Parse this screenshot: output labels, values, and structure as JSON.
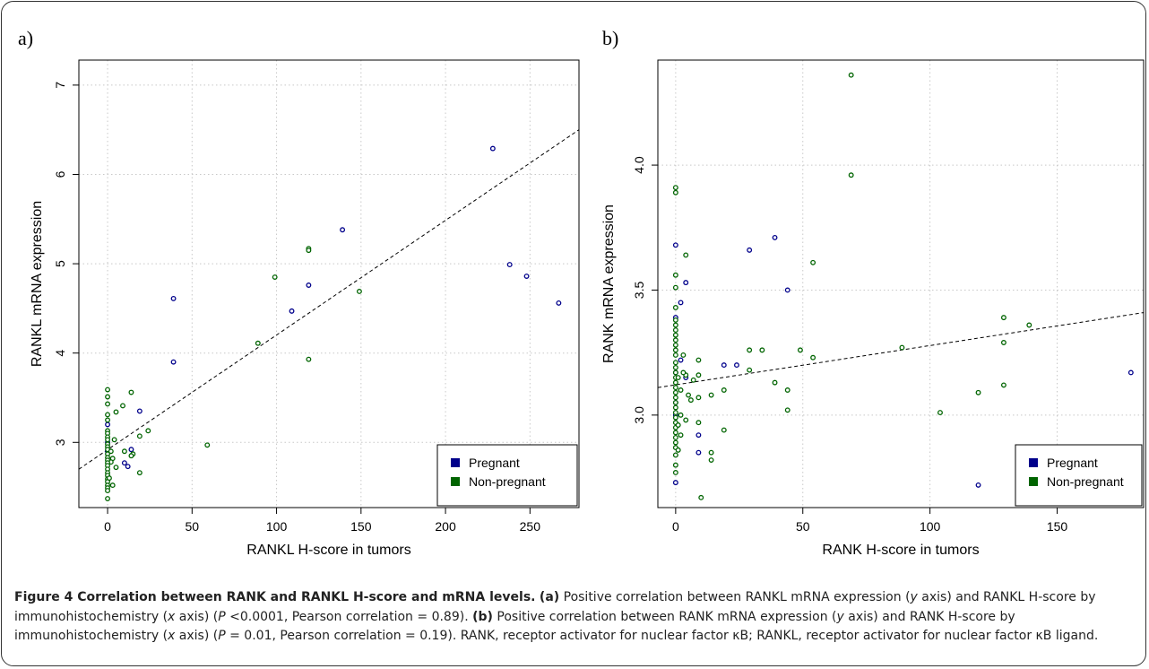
{
  "chart_data": [
    {
      "panel": "a)",
      "type": "scatter",
      "xlabel": "RANKL H-score in tumors",
      "ylabel": "RANKL mRNA expression",
      "xlim": [
        -17,
        279
      ],
      "ylim": [
        2.27,
        7.28
      ],
      "xticks": [
        0,
        50,
        100,
        150,
        200,
        250
      ],
      "yticks": [
        3,
        4,
        5,
        6,
        7
      ],
      "grid": true,
      "legend_position": "bottom-right",
      "regression_line": {
        "style": "dashed",
        "points": [
          [
            -17,
            2.7
          ],
          [
            279,
            6.5
          ]
        ]
      },
      "series": [
        {
          "name": "Pregnant",
          "color": "#00008B",
          "points": [
            [
              228,
              6.29
            ],
            [
              238,
              4.99
            ],
            [
              248,
              4.86
            ],
            [
              267,
              4.56
            ],
            [
              139,
              5.38
            ],
            [
              119,
              4.76
            ],
            [
              109,
              4.47
            ],
            [
              39,
              4.61
            ],
            [
              39,
              3.9
            ],
            [
              19,
              3.35
            ],
            [
              10,
              2.77
            ],
            [
              12,
              2.73
            ],
            [
              14,
              2.92
            ],
            [
              0,
              3.2
            ],
            [
              0,
              3.0
            ],
            [
              0,
              2.9
            ]
          ]
        },
        {
          "name": "Non-pregnant",
          "color": "#006400",
          "points": [
            [
              119,
              5.17
            ],
            [
              119,
              5.15
            ],
            [
              99,
              4.85
            ],
            [
              149,
              4.69
            ],
            [
              119,
              3.93
            ],
            [
              89,
              4.11
            ],
            [
              59,
              2.97
            ],
            [
              24,
              3.13
            ],
            [
              19,
              3.07
            ],
            [
              19,
              2.66
            ],
            [
              14,
              3.56
            ],
            [
              15,
              2.87
            ],
            [
              14,
              2.85
            ],
            [
              9,
              3.41
            ],
            [
              10,
              2.9
            ],
            [
              5,
              3.34
            ],
            [
              4,
              3.03
            ],
            [
              3,
              2.82
            ],
            [
              2,
              2.78
            ],
            [
              3,
              2.52
            ],
            [
              5,
              2.72
            ],
            [
              0,
              3.59
            ],
            [
              0,
              3.51
            ],
            [
              0,
              3.43
            ],
            [
              0,
              3.31
            ],
            [
              0,
              3.25
            ],
            [
              0,
              3.13
            ],
            [
              0,
              3.1
            ],
            [
              0,
              3.06
            ],
            [
              0,
              3.03
            ],
            [
              0,
              2.98
            ],
            [
              0,
              2.95
            ],
            [
              0,
              2.92
            ],
            [
              0,
              2.87
            ],
            [
              0,
              2.83
            ],
            [
              0,
              2.8
            ],
            [
              0,
              2.77
            ],
            [
              0,
              2.74
            ],
            [
              0,
              2.7
            ],
            [
              0,
              2.66
            ],
            [
              0,
              2.63
            ],
            [
              0,
              2.59
            ],
            [
              0,
              2.56
            ],
            [
              0,
              2.52
            ],
            [
              0,
              2.49
            ],
            [
              0,
              2.46
            ],
            [
              0,
              2.37
            ],
            [
              2,
              2.9
            ],
            [
              1,
              2.6
            ]
          ]
        }
      ]
    },
    {
      "panel": "b)",
      "type": "scatter",
      "xlabel": "RANK H-score in tumors",
      "ylabel": "RANK mRNA expression",
      "xlim": [
        -7,
        184
      ],
      "ylim": [
        2.63,
        4.42
      ],
      "xticks": [
        0,
        50,
        100,
        150
      ],
      "yticks": [
        3.0,
        3.5,
        4.0
      ],
      "grid": true,
      "legend_position": "bottom-right",
      "regression_line": {
        "style": "dashed",
        "points": [
          [
            -7,
            3.11
          ],
          [
            184,
            3.41
          ]
        ]
      },
      "series": [
        {
          "name": "Pregnant",
          "color": "#00008B",
          "points": [
            [
              39,
              3.71
            ],
            [
              29,
              3.66
            ],
            [
              44,
              3.5
            ],
            [
              179,
              3.17
            ],
            [
              119,
              2.72
            ],
            [
              4,
              3.53
            ],
            [
              2,
              3.45
            ],
            [
              0,
              3.68
            ],
            [
              0,
              3.39
            ],
            [
              0,
              2.73
            ],
            [
              0,
              3.0
            ],
            [
              0,
              3.17
            ],
            [
              0,
              3.05
            ],
            [
              9,
              2.85
            ],
            [
              9,
              2.92
            ],
            [
              19,
              3.2
            ],
            [
              24,
              3.2
            ],
            [
              2,
              3.22
            ],
            [
              4,
              3.15
            ]
          ]
        },
        {
          "name": "Non-pregnant",
          "color": "#006400",
          "points": [
            [
              69,
              4.36
            ],
            [
              69,
              3.96
            ],
            [
              0,
              3.91
            ],
            [
              0,
              3.89
            ],
            [
              4,
              3.64
            ],
            [
              54,
              3.61
            ],
            [
              0,
              3.56
            ],
            [
              0,
              3.51
            ],
            [
              0,
              3.43
            ],
            [
              0,
              3.38
            ],
            [
              0,
              3.36
            ],
            [
              0,
              3.34
            ],
            [
              0,
              3.32
            ],
            [
              0,
              3.3
            ],
            [
              0,
              3.28
            ],
            [
              0,
              3.26
            ],
            [
              0,
              3.24
            ],
            [
              0,
              3.21
            ],
            [
              0,
              3.19
            ],
            [
              0,
              3.17
            ],
            [
              0,
              3.15
            ],
            [
              0,
              3.13
            ],
            [
              0,
              3.11
            ],
            [
              0,
              3.09
            ],
            [
              0,
              3.07
            ],
            [
              0,
              3.05
            ],
            [
              0,
              3.03
            ],
            [
              0,
              3.01
            ],
            [
              0,
              2.99
            ],
            [
              0,
              2.97
            ],
            [
              0,
              2.95
            ],
            [
              0,
              2.93
            ],
            [
              0,
              2.91
            ],
            [
              0,
              2.89
            ],
            [
              0,
              2.87
            ],
            [
              0,
              2.84
            ],
            [
              0,
              2.8
            ],
            [
              0,
              2.77
            ],
            [
              89,
              3.27
            ],
            [
              129,
              3.39
            ],
            [
              129,
              3.29
            ],
            [
              129,
              3.12
            ],
            [
              139,
              3.36
            ],
            [
              119,
              3.09
            ],
            [
              104,
              3.01
            ],
            [
              29,
              3.26
            ],
            [
              34,
              3.26
            ],
            [
              29,
              3.18
            ],
            [
              49,
              3.26
            ],
            [
              54,
              3.23
            ],
            [
              39,
              3.13
            ],
            [
              44,
              3.1
            ],
            [
              44,
              3.02
            ],
            [
              19,
              3.1
            ],
            [
              19,
              2.94
            ],
            [
              14,
              3.08
            ],
            [
              14,
              2.85
            ],
            [
              14,
              2.82
            ],
            [
              9,
              3.22
            ],
            [
              9,
              3.16
            ],
            [
              9,
              3.07
            ],
            [
              9,
              2.97
            ],
            [
              10,
              2.67
            ],
            [
              7,
              3.14
            ],
            [
              6,
              3.06
            ],
            [
              4,
              3.16
            ],
            [
              4,
              2.98
            ],
            [
              3,
              3.17
            ],
            [
              2,
              3.1
            ],
            [
              2,
              3.0
            ],
            [
              2,
              2.92
            ],
            [
              1,
              3.15
            ],
            [
              1,
              2.96
            ],
            [
              1,
              2.86
            ],
            [
              3,
              3.24
            ],
            [
              5,
              3.08
            ]
          ]
        }
      ]
    }
  ],
  "caption": {
    "label": "Figure 4 Correlation between RANK and RANKL H-score and mRNA levels.",
    "part_a_tag": "(a)",
    "part_a_text_1": " Positive correlation between RANKL mRNA expression (",
    "part_a_var_y": "y",
    "part_a_text_2": " axis) and RANKL H-score by immunohistochemistry (",
    "part_a_var_x": "x",
    "part_a_text_3": " axis) (",
    "part_a_p": "P",
    "part_a_text_4": " <0.0001, Pearson correlation = 0.89). ",
    "part_b_tag": "(b)",
    "part_b_text_1": " Positive correlation between RANK mRNA expression (",
    "part_b_var_y": "y",
    "part_b_text_2": " axis) and RANK H-score by immunohistochemistry (",
    "part_b_var_x": "x",
    "part_b_text_3": " axis) (",
    "part_b_p": "P",
    "part_b_text_4": " = 0.01, Pearson correlation = 0.19). RANK, receptor activator for nuclear factor κB; RANKL, receptor activator for nuclear factor κB ligand."
  }
}
